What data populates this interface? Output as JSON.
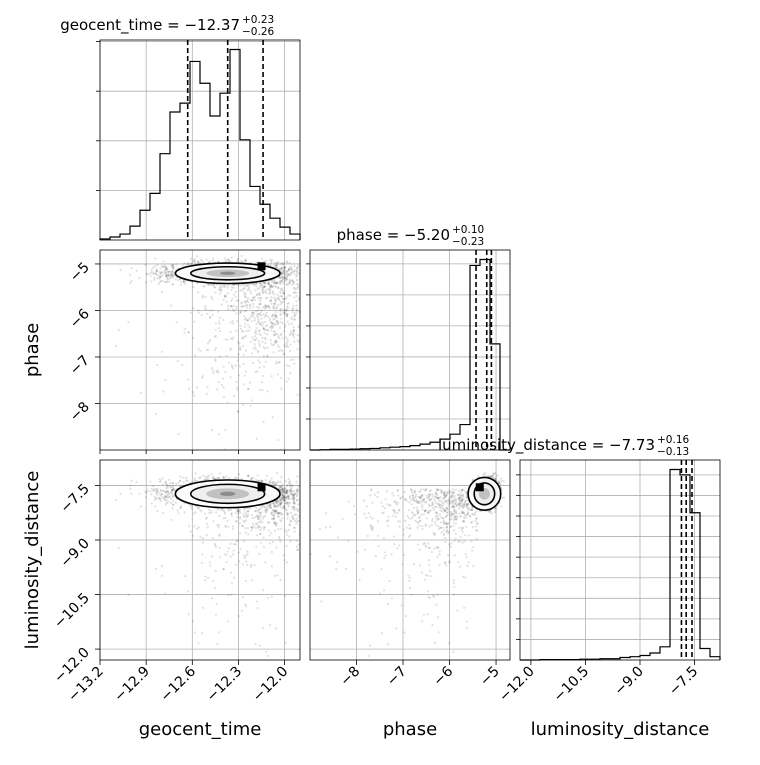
{
  "chart_data": {
    "type": "corner",
    "parameters": [
      "geocent_time",
      "phase",
      "luminosity_distance"
    ],
    "titles": [
      {
        "param": "geocent_time",
        "prefix": "geocent_time = ",
        "median": "−12.37",
        "plus": "+0.23",
        "minus": "−0.26"
      },
      {
        "param": "phase",
        "prefix": "phase = ",
        "median": "−5.20",
        "plus": "+0.10",
        "minus": "−0.23"
      },
      {
        "param": "luminosity_distance",
        "prefix": "luminosity_distance = ",
        "median": "−7.73",
        "plus": "+0.16",
        "minus": "−0.13"
      }
    ],
    "axes": {
      "geocent_time": {
        "range": [
          -13.2,
          -11.9
        ],
        "ticks": [
          -13.2,
          -12.9,
          -12.6,
          -12.3,
          -12.0
        ],
        "tick_labels": [
          "−13.2",
          "−12.9",
          "−12.6",
          "−12.3",
          "−12.0"
        ],
        "label": "geocent_time"
      },
      "phase": {
        "range": [
          -9.0,
          -4.7
        ],
        "ticks": [
          -8,
          -7,
          -6,
          -5
        ],
        "tick_labels": [
          "−8",
          "−7",
          "−6",
          "−5"
        ],
        "label": "phase"
      },
      "luminosity_distance": {
        "range": [
          -12.3,
          -6.8
        ],
        "ticks": [
          -12.0,
          -10.5,
          -9.0,
          -7.5
        ],
        "tick_labels": [
          "−12.0",
          "−10.5",
          "−9.0",
          "−7.5"
        ],
        "label": "luminosity_distance"
      }
    },
    "histograms": {
      "geocent_time": {
        "edges": [
          -13.2,
          -13.135,
          -13.07,
          -13.005,
          -12.94,
          -12.875,
          -12.81,
          -12.745,
          -12.68,
          -12.615,
          -12.55,
          -12.485,
          -12.42,
          -12.355,
          -12.29,
          -12.225,
          -12.16,
          -12.095,
          -12.03,
          -11.965,
          -11.9
        ],
        "counts": [
          1,
          3,
          6,
          14,
          30,
          47,
          87,
          129,
          138,
          180,
          158,
          125,
          148,
          192,
          101,
          54,
          36,
          22,
          13,
          6
        ],
        "quantiles": [
          -12.63,
          -12.37,
          -12.14
        ]
      },
      "phase": {
        "edges": [
          -9.0,
          -8.785,
          -8.57,
          -8.355,
          -8.14,
          -7.925,
          -7.71,
          -7.495,
          -7.28,
          -7.065,
          -6.85,
          -6.635,
          -6.42,
          -6.205,
          -5.99,
          -5.775,
          -5.56,
          -5.345,
          -5.13,
          -4.915,
          -4.7
        ],
        "counts": [
          0,
          1,
          2,
          2,
          3,
          4,
          5,
          7,
          9,
          11,
          14,
          19,
          25,
          35,
          51,
          82,
          595,
          614,
          342,
          0
        ],
        "quantiles": [
          -5.43,
          -5.2,
          -5.1
        ]
      },
      "luminosity_distance": {
        "edges": [
          -12.3,
          -12.025,
          -11.75,
          -11.475,
          -11.2,
          -10.925,
          -10.65,
          -10.375,
          -10.1,
          -9.825,
          -9.55,
          -9.275,
          -9.0,
          -8.725,
          -8.45,
          -8.175,
          -7.9,
          -7.625,
          -7.35,
          -7.075,
          -6.8
        ],
        "counts": [
          0,
          0,
          1,
          1,
          1,
          1,
          2,
          2,
          3,
          3,
          6,
          8,
          11,
          17,
          32,
          463,
          450,
          358,
          28,
          8
        ],
        "quantiles": [
          -7.86,
          -7.73,
          -7.57
        ]
      }
    },
    "grid": true
  }
}
